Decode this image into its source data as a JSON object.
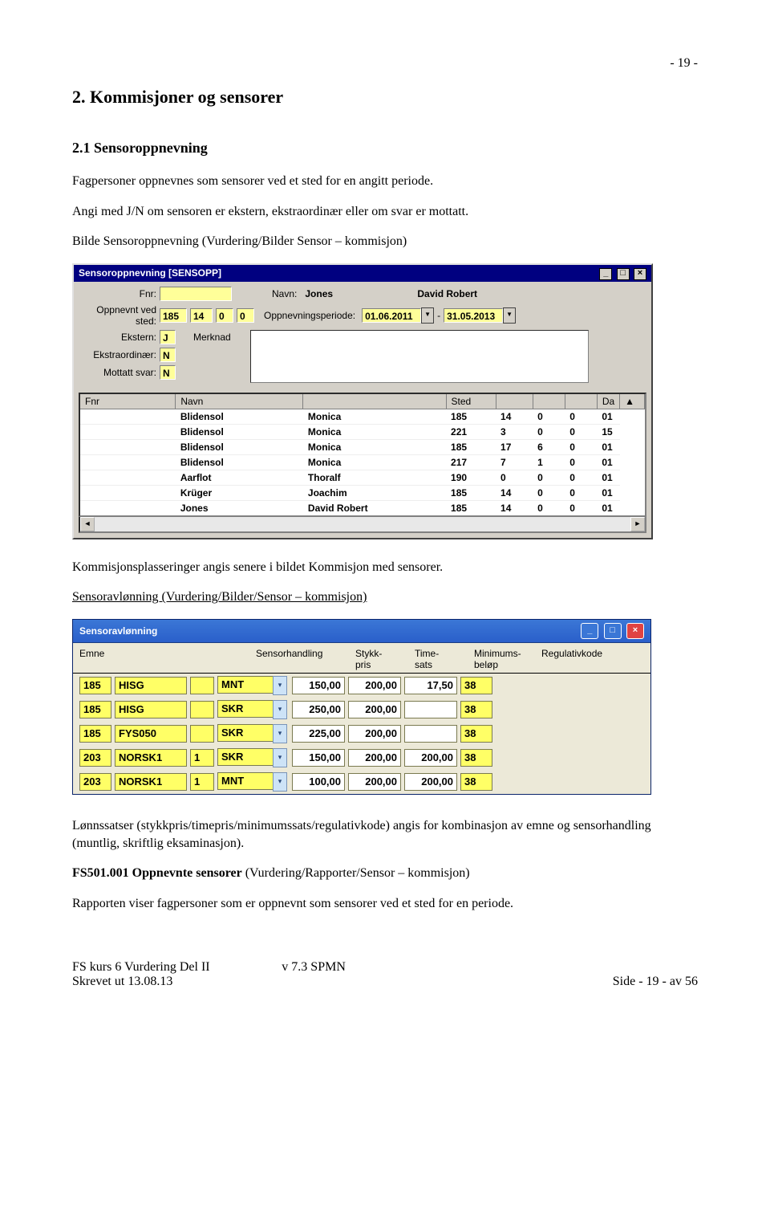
{
  "page_number_top": "- 19 -",
  "heading_main": "2. Kommisjoner og sensorer",
  "heading_sub": "2.1 Sensoroppnevning",
  "para1": "Fagpersoner oppnevnes som sensorer ved et sted for en angitt periode.",
  "para2": "Angi med J/N om sensoren er ekstern, ekstraordinær eller om svar er mottatt.",
  "para3": "Bilde Sensoroppnevning (Vurdering/Bilder Sensor – kommisjon)",
  "sensopp": {
    "title": "Sensoroppnevning  [SENSOPP]",
    "labels": {
      "fnr": "Fnr:",
      "navn": "Navn:",
      "oppnevnt": "Oppnevnt ved sted:",
      "oppnperiode": "Oppnevningsperiode:",
      "ekstern": "Ekstern:",
      "merknad": "Merknad",
      "ekstraord": "Ekstraordinær:",
      "mottatt": "Mottatt svar:"
    },
    "values": {
      "fnr": "",
      "navn_last": "Jones",
      "navn_first": "David Robert",
      "sted1": "185",
      "sted2": "14",
      "sted3": "0",
      "sted4": "0",
      "per_from": "01.06.2011",
      "per_to": "31.05.2013",
      "ekstern": "J",
      "ekstraord": "N",
      "mottatt": "N"
    },
    "grid_headers": [
      "Fnr",
      "Navn",
      "",
      "Sted",
      "",
      "",
      "",
      "Da"
    ],
    "grid_rows": [
      {
        "navn": "Blidensol",
        "first": "Monica",
        "s1": "185",
        "s2": "14",
        "s3": "0",
        "s4": "0",
        "d": "01"
      },
      {
        "navn": "Blidensol",
        "first": "Monica",
        "s1": "221",
        "s2": "3",
        "s3": "0",
        "s4": "0",
        "d": "15"
      },
      {
        "navn": "Blidensol",
        "first": "Monica",
        "s1": "185",
        "s2": "17",
        "s3": "6",
        "s4": "0",
        "d": "01"
      },
      {
        "navn": "Blidensol",
        "first": "Monica",
        "s1": "217",
        "s2": "7",
        "s3": "1",
        "s4": "0",
        "d": "01"
      },
      {
        "navn": "Aarflot",
        "first": "Thoralf",
        "s1": "190",
        "s2": "0",
        "s3": "0",
        "s4": "0",
        "d": "01"
      },
      {
        "navn": "Krüger",
        "first": "Joachim",
        "s1": "185",
        "s2": "14",
        "s3": "0",
        "s4": "0",
        "d": "01"
      },
      {
        "navn": "Jones",
        "first": "David Robert",
        "s1": "185",
        "s2": "14",
        "s3": "0",
        "s4": "0",
        "d": "01"
      }
    ]
  },
  "para_after1": "Kommisjonsplasseringer angis senere i bildet Kommisjon med sensorer.",
  "heading_sensoravl": "Sensoravlønning (Vurdering/Bilder/Sensor – kommisjon)",
  "sensoravl": {
    "title": "Sensoravlønning",
    "headers": {
      "emne": "Emne",
      "sensorhandling": "Sensorhandling",
      "stykk": "Stykk-\npris",
      "time": "Time-\nsats",
      "min": "Minimums-\nbeløp",
      "reg": "Regulativkode"
    },
    "rows": [
      {
        "c1": "185",
        "c2": "HISG",
        "c3": "",
        "h": "MNT",
        "stykk": "150,00",
        "time": "200,00",
        "min": "17,50",
        "reg": "38"
      },
      {
        "c1": "185",
        "c2": "HISG",
        "c3": "",
        "h": "SKR",
        "stykk": "250,00",
        "time": "200,00",
        "min": "",
        "reg": "38"
      },
      {
        "c1": "185",
        "c2": "FYS050",
        "c3": "",
        "h": "SKR",
        "stykk": "225,00",
        "time": "200,00",
        "min": "",
        "reg": "38"
      },
      {
        "c1": "203",
        "c2": "NORSK1",
        "c3": "1",
        "h": "SKR",
        "stykk": "150,00",
        "time": "200,00",
        "min": "200,00",
        "reg": "38"
      },
      {
        "c1": "203",
        "c2": "NORSK1",
        "c3": "1",
        "h": "MNT",
        "stykk": "100,00",
        "time": "200,00",
        "min": "200,00",
        "reg": "38"
      }
    ]
  },
  "para_after2": "Lønnssatser (stykkpris/timepris/minimumssats/regulativkode) angis for kombinasjon av emne og sensorhandling (muntlig, skriftlig eksaminasjon).",
  "fs501_bold": "FS501.001 Oppnevnte sensorer",
  "fs501_rest": " (Vurdering/Rapporter/Sensor – kommisjon)",
  "para_after3": "Rapporten viser fagpersoner som er oppnevnt som sensorer ved et sted for en periode.",
  "footer": {
    "left1": "FS kurs 6 Vurdering Del II",
    "left2": "Skrevet ut 13.08.13",
    "mid": "v 7.3 SPMN",
    "right": "Side - 19 - av 56"
  }
}
